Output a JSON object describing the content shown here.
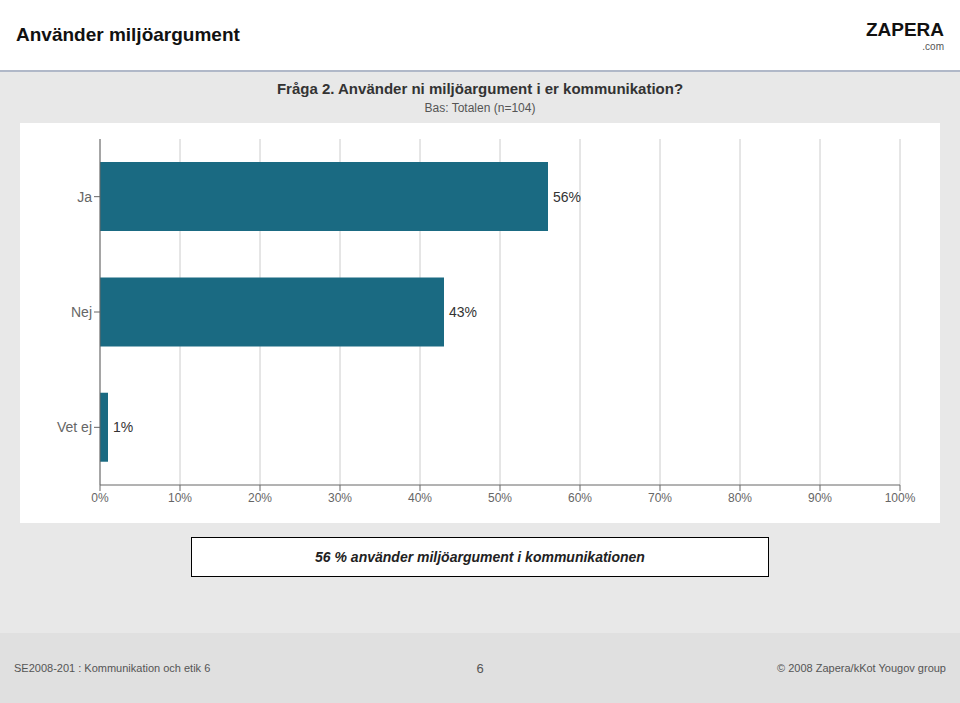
{
  "chart_data": {
    "type": "bar",
    "orientation": "horizontal",
    "header": "Använder miljöargument",
    "logo": [
      "ZAPERA",
      ".com"
    ],
    "title": "Fråga 2. Använder ni miljöargument i er kommunikation?",
    "subtitle": "Bas: Totalen (n=104)",
    "categories": [
      "Ja",
      "Nej",
      "Vet ej"
    ],
    "values": [
      56,
      43,
      1
    ],
    "value_labels": [
      "56%",
      "43%",
      "1%"
    ],
    "data_labels": true,
    "color": "#1a6a82",
    "xlim": [
      0,
      100
    ],
    "xticks": [
      {
        "value": 0,
        "label": "0%"
      },
      {
        "value": 10,
        "label": "10%"
      },
      {
        "value": 20,
        "label": "20%"
      },
      {
        "value": 30,
        "label": "30%"
      },
      {
        "value": 40,
        "label": "40%"
      },
      {
        "value": 50,
        "label": "50%"
      },
      {
        "value": 60,
        "label": "60%"
      },
      {
        "value": 70,
        "label": "70%"
      },
      {
        "value": 80,
        "label": "80%"
      },
      {
        "value": 90,
        "label": "90%"
      },
      {
        "value": 100,
        "label": "100%"
      }
    ],
    "grid": true,
    "annotation": "56 % använder miljöargument i kommunikationen",
    "footer": [
      "SE2008-201 : Kommunikation och etik  6",
      "6",
      "© 2008 Zapera/kKot Yougov group"
    ]
  }
}
